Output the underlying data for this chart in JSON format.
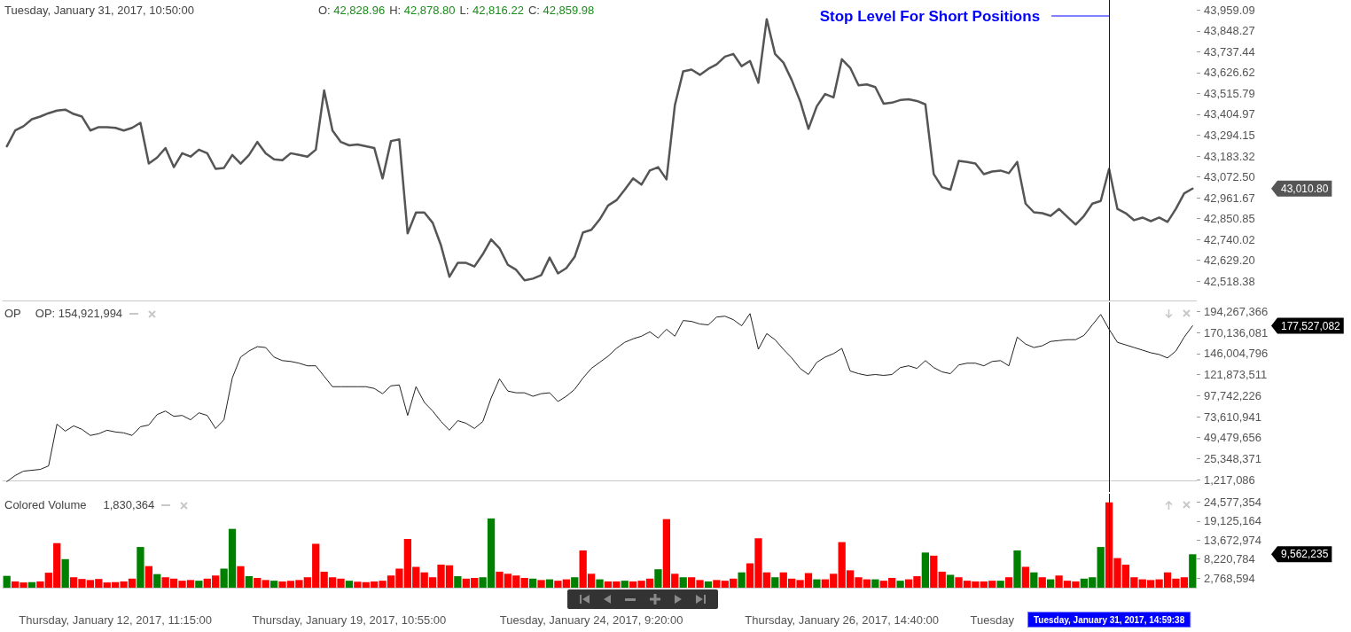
{
  "chart_data": [
    {
      "type": "line",
      "annotations": [
        "Tuesday, January 31, 2017, 10:50:00",
        "O: 42,828.96",
        "H: 42,878.80",
        "L: 42,816.22",
        "C: 42,859.98",
        "43,010.80"
      ],
      "categories": [
        null,
        null,
        null,
        null,
        null,
        null,
        null,
        null,
        null,
        null,
        null,
        null,
        null,
        "Thursday, January 12, 2017, 11:15:00",
        null,
        null,
        null,
        null,
        null,
        null,
        null,
        null,
        null,
        null,
        null,
        null,
        null,
        null,
        null,
        null,
        null,
        null,
        null,
        null,
        null,
        null,
        null,
        null,
        null,
        null,
        null,
        "Thursday, January 19, 2017, 10:55:00",
        null,
        null,
        null,
        null,
        null,
        null,
        null,
        null,
        null,
        null,
        null,
        null,
        null,
        null,
        null,
        null,
        null,
        null,
        null,
        null,
        null,
        null,
        null,
        null,
        null,
        null,
        null,
        null,
        "Tuesday, January 24, 2017, 9:20:00",
        null,
        null,
        null,
        null,
        null,
        null,
        null,
        null,
        null,
        null,
        null,
        null,
        null,
        null,
        null,
        null,
        null,
        null,
        null,
        null,
        null,
        null,
        null,
        null,
        null,
        null,
        null,
        null,
        null,
        "Thursday, January 26, 2017, 14:40:00",
        null,
        null,
        null,
        null,
        null,
        null,
        null,
        null,
        null,
        null,
        null,
        null,
        null,
        null,
        null,
        null,
        null,
        "Tuesday",
        null,
        null,
        null,
        null,
        null,
        null,
        null,
        null,
        null,
        null,
        null,
        null,
        null,
        "Tuesday, January 31, 2017, 14:59:38",
        null,
        null,
        null,
        null,
        null,
        null,
        null,
        null,
        null,
        null
      ],
      "series": [
        {
          "color": "#555555",
          "values": [
            43235,
            43319,
            43342,
            43379,
            43393,
            43411,
            43425,
            43430,
            43407,
            43393,
            43319,
            43337,
            43337,
            43333,
            43319,
            43333,
            43360,
            43143,
            43175,
            43226,
            43124,
            43198,
            43180,
            43217,
            43198,
            43115,
            43120,
            43189,
            43143,
            43189,
            43258,
            43198,
            43166,
            43161,
            43198,
            43189,
            43180,
            43217,
            43532,
            43319,
            43258,
            43240,
            43245,
            43235,
            43226,
            43064,
            43263,
            43272,
            42772,
            42883,
            42883,
            42828,
            42707,
            42541,
            42615,
            42615,
            42596,
            42661,
            42740,
            42693,
            42605,
            42578,
            42522,
            42531,
            42550,
            42643,
            42559,
            42587,
            42647,
            42777,
            42791,
            42846,
            42920,
            42948,
            43004,
            43064,
            43031,
            43106,
            43124,
            43059,
            43453,
            43634,
            43643,
            43615,
            43647,
            43671,
            43712,
            43726,
            43661,
            43689,
            43573,
            43911,
            43726,
            43680,
            43587,
            43476,
            43328,
            43448,
            43513,
            43495,
            43698,
            43652,
            43559,
            43564,
            43550,
            43462,
            43467,
            43481,
            43485,
            43476,
            43458,
            43087,
            43018,
            43004,
            43157,
            43152,
            43143,
            43087,
            43101,
            43106,
            43092,
            43152,
            42930,
            42884,
            42879,
            42865,
            42902,
            42860,
            42819,
            42865,
            42930,
            42944,
            43115,
            42902,
            42879,
            42842,
            42856,
            42837,
            42856,
            42833,
            42902,
            42985,
            43010
          ]
        }
      ],
      "ylim": [
        42415,
        44013
      ],
      "yticks": [
        {
          "value": 43959.09,
          "label": "43,959.09"
        },
        {
          "value": 43848.27,
          "label": "43,848.27"
        },
        {
          "value": 43737.44,
          "label": "43,737.44"
        },
        {
          "value": 43626.62,
          "label": "43,626.62"
        },
        {
          "value": 43515.79,
          "label": "43,515.79"
        },
        {
          "value": 43404.97,
          "label": "43,404.97"
        },
        {
          "value": 43294.15,
          "label": "43,294.15"
        },
        {
          "value": 43183.32,
          "label": "43,183.32"
        },
        {
          "value": 43072.5,
          "label": "43,072.50"
        },
        {
          "value": 42961.67,
          "label": "42,961.67"
        },
        {
          "value": 42850.85,
          "label": "42,850.85"
        },
        {
          "value": 42740.02,
          "label": "42,740.02"
        },
        {
          "value": 42629.2,
          "label": "42,629.20"
        },
        {
          "value": 42518.38,
          "label": "42,518.38"
        }
      ],
      "marker": "none",
      "tick_labels": "y",
      "ref_lines": [
        {
          "axis": "x",
          "value": "Tuesday, January 31, 2017, 14:59:38",
          "label": "Stop Level For Short Positions",
          "color": "#0000ff"
        }
      ]
    },
    {
      "type": "line",
      "title": "OP",
      "annotations": [
        "OP: 154,921,994",
        "177,527,082"
      ],
      "categories": [
        null,
        null,
        null,
        null,
        null,
        null,
        null,
        null,
        null,
        null,
        null,
        null,
        null,
        "Thursday, January 12, 2017, 11:15:00",
        null,
        null,
        null,
        null,
        null,
        null,
        null,
        null,
        null,
        null,
        null,
        null,
        null,
        null,
        null,
        null,
        null,
        null,
        null,
        null,
        null,
        null,
        null,
        null,
        null,
        null,
        null,
        "Thursday, January 19, 2017, 10:55:00",
        null,
        null,
        null,
        null,
        null,
        null,
        null,
        null,
        null,
        null,
        null,
        null,
        null,
        null,
        null,
        null,
        null,
        null,
        null,
        null,
        null,
        null,
        null,
        null,
        null,
        null,
        null,
        null,
        "Tuesday, January 24, 2017, 9:20:00",
        null,
        null,
        null,
        null,
        null,
        null,
        null,
        null,
        null,
        null,
        null,
        null,
        null,
        null,
        null,
        null,
        null,
        null,
        null,
        null,
        null,
        null,
        null,
        null,
        null,
        null,
        null,
        null,
        null,
        "Thursday, January 26, 2017, 14:40:00",
        null,
        null,
        null,
        null,
        null,
        null,
        null,
        null,
        null,
        null,
        null,
        null,
        null,
        null,
        null,
        null,
        null,
        "Tuesday",
        null,
        null,
        null,
        null,
        null,
        null,
        null,
        null,
        null,
        null,
        null,
        null,
        null,
        "Tuesday, January 31, 2017, 14:59:38",
        null,
        null,
        null,
        null,
        null,
        null,
        null,
        null,
        null,
        null
      ],
      "series": [
        {
          "color": "#222222",
          "values": [
            -1000000,
            6000000,
            11000000,
            12000000,
            13000000,
            17000000,
            65000000,
            57000000,
            63000000,
            59000000,
            52000000,
            54000000,
            58000000,
            56000000,
            55000000,
            52000000,
            62000000,
            64000000,
            76000000,
            80000000,
            74000000,
            75000000,
            70000000,
            78000000,
            75000000,
            60000000,
            70000000,
            118000000,
            142000000,
            149000000,
            154000000,
            153000000,
            142000000,
            138000000,
            137000000,
            135000000,
            132000000,
            132000000,
            120000000,
            108000000,
            108000000,
            108000000,
            108000000,
            108000000,
            106000000,
            100000000,
            109000000,
            110000000,
            75000000,
            108000000,
            90000000,
            80000000,
            68000000,
            58000000,
            69000000,
            66000000,
            60000000,
            68000000,
            95000000,
            117000000,
            103000000,
            101000000,
            101000000,
            97000000,
            100000000,
            101000000,
            91000000,
            97000000,
            105000000,
            118000000,
            129000000,
            136000000,
            143000000,
            152000000,
            159000000,
            163000000,
            166000000,
            171000000,
            164000000,
            174000000,
            166000000,
            184000000,
            183000000,
            180000000,
            179000000,
            188000000,
            189000000,
            185000000,
            178000000,
            192000000,
            151000000,
            169000000,
            162000000,
            151000000,
            141000000,
            129000000,
            122000000,
            136000000,
            142000000,
            146000000,
            152000000,
            126000000,
            123000000,
            121000000,
            122000000,
            121000000,
            122000000,
            130000000,
            132000000,
            129000000,
            138000000,
            130000000,
            125000000,
            123000000,
            133000000,
            135000000,
            135000000,
            132000000,
            137000000,
            138000000,
            132000000,
            165000000,
            157000000,
            153000000,
            155000000,
            160000000,
            161000000,
            162000000,
            162000000,
            167000000,
            179000000,
            191000000,
            174000000,
            159000000,
            156000000,
            153000000,
            150000000,
            147000000,
            145000000,
            141000000,
            149000000,
            165000000,
            178000000
          ]
        }
      ],
      "ylim": [
        -12900000,
        205000000
      ],
      "yticks": [
        {
          "value": 194267366,
          "label": "194,267,366"
        },
        {
          "value": 170136081,
          "label": "170,136,081"
        },
        {
          "value": 146004796,
          "label": "146,004,796"
        },
        {
          "value": 121873511,
          "label": "121,873,511"
        },
        {
          "value": 97742226,
          "label": "97,742,226"
        },
        {
          "value": 73610941,
          "label": "73,610,941"
        },
        {
          "value": 49479656,
          "label": "49,479,656"
        },
        {
          "value": 25348371,
          "label": "25,348,371"
        },
        {
          "value": 1217086,
          "label": "1,217,086"
        }
      ],
      "marker": "none",
      "tick_labels": "y",
      "ref_lines": [
        {
          "axis": "x",
          "value": "Tuesday, January 31, 2017, 14:59:38",
          "color": "#0000ff"
        }
      ]
    },
    {
      "type": "bar",
      "title": "Colored Volume",
      "annotations": [
        "1,830,364",
        "9,562,235"
      ],
      "categories": [
        null,
        null,
        null,
        null,
        null,
        null,
        null,
        null,
        null,
        null,
        null,
        null,
        null,
        "Thursday, January 12, 2017, 11:15:00",
        null,
        null,
        null,
        null,
        null,
        null,
        null,
        null,
        null,
        null,
        null,
        null,
        null,
        null,
        null,
        null,
        null,
        null,
        null,
        null,
        null,
        null,
        null,
        null,
        null,
        null,
        null,
        "Thursday, January 19, 2017, 10:55:00",
        null,
        null,
        null,
        null,
        null,
        null,
        null,
        null,
        null,
        null,
        null,
        null,
        null,
        null,
        null,
        null,
        null,
        null,
        null,
        null,
        null,
        null,
        null,
        null,
        null,
        null,
        null,
        null,
        "Tuesday, January 24, 2017, 9:20:00",
        null,
        null,
        null,
        null,
        null,
        null,
        null,
        null,
        null,
        null,
        null,
        null,
        null,
        null,
        null,
        null,
        null,
        null,
        null,
        null,
        null,
        null,
        null,
        null,
        null,
        null,
        null,
        null,
        null,
        "Thursday, January 26, 2017, 14:40:00",
        null,
        null,
        null,
        null,
        null,
        null,
        null,
        null,
        null,
        null,
        null,
        null,
        null,
        null,
        null,
        null,
        null,
        "Tuesday",
        null,
        null,
        null,
        null,
        null,
        null,
        null,
        null,
        null,
        null,
        null,
        null,
        null,
        "Tuesday, January 31, 2017, 14:59:38",
        null,
        null,
        null,
        null,
        null,
        null,
        null,
        null,
        null,
        null
      ],
      "values": [
        3400000,
        1800000,
        1500000,
        1600000,
        1800000,
        4300000,
        12800000,
        8200000,
        3000000,
        2500000,
        2200000,
        2500000,
        1500000,
        1600000,
        1800000,
        2600000,
        11700000,
        6200000,
        3900000,
        3000000,
        2600000,
        2000000,
        2200000,
        2000000,
        2600000,
        3500000,
        5500000,
        16900000,
        6200000,
        3300000,
        2800000,
        2200000,
        2000000,
        1800000,
        2000000,
        2200000,
        3000000,
        12600000,
        4600000,
        3000000,
        2600000,
        2000000,
        1700000,
        1600000,
        1800000,
        2000000,
        3500000,
        5500000,
        14000000,
        6000000,
        4400000,
        3000000,
        6600000,
        6400000,
        3300000,
        2600000,
        2800000,
        3000000,
        19900000,
        4600000,
        4000000,
        3500000,
        2800000,
        2600000,
        2200000,
        2400000,
        2000000,
        2400000,
        3000000,
        10700000,
        4000000,
        2400000,
        1800000,
        1800000,
        2000000,
        1800000,
        2000000,
        2600000,
        5300000,
        19700000,
        4000000,
        3000000,
        3000000,
        2200000,
        1800000,
        2200000,
        2000000,
        2600000,
        4400000,
        7000000,
        14200000,
        4400000,
        3000000,
        4400000,
        2600000,
        2200000,
        4200000,
        2400000,
        2400000,
        4000000,
        13100000,
        5000000,
        3000000,
        2400000,
        2400000,
        2000000,
        2800000,
        2000000,
        2400000,
        3300000,
        10100000,
        9200000,
        4600000,
        3700000,
        3000000,
        2000000,
        1800000,
        1800000,
        2000000,
        2000000,
        3000000,
        10700000,
        6000000,
        4400000,
        3000000,
        2400000,
        3500000,
        2000000,
        1800000,
        2600000,
        3000000,
        11700000,
        24500000,
        8500000,
        6600000,
        3000000,
        2400000,
        2200000,
        2400000,
        4400000,
        2600000,
        3000000,
        9600000
      ],
      "colors": [
        "#008000",
        "#ff0000",
        "#ff0000",
        "#008000",
        "#ff0000",
        "#ff0000",
        "#ff0000",
        "#008000",
        "#ff0000",
        "#ff0000",
        "#ff0000",
        "#ff0000",
        "#ff0000",
        "#ff0000",
        "#ff0000",
        "#ff0000",
        "#008000",
        "#ff0000",
        "#008000",
        "#ff0000",
        "#ff0000",
        "#ff0000",
        "#ff0000",
        "#008000",
        "#ff0000",
        "#ff0000",
        "#008000",
        "#008000",
        "#ff0000",
        "#008000",
        "#ff0000",
        "#ff0000",
        "#008000",
        "#ff0000",
        "#ff0000",
        "#ff0000",
        "#ff0000",
        "#ff0000",
        "#ff0000",
        "#ff0000",
        "#ff0000",
        "#008000",
        "#ff0000",
        "#ff0000",
        "#ff0000",
        "#ff0000",
        "#ff0000",
        "#ff0000",
        "#ff0000",
        "#ff0000",
        "#ff0000",
        "#ff0000",
        "#ff0000",
        "#ff0000",
        "#008000",
        "#ff0000",
        "#ff0000",
        "#008000",
        "#008000",
        "#ff0000",
        "#ff0000",
        "#ff0000",
        "#ff0000",
        "#008000",
        "#ff0000",
        "#008000",
        "#ff0000",
        "#ff0000",
        "#008000",
        "#ff0000",
        "#ff0000",
        "#008000",
        "#ff0000",
        "#ff0000",
        "#008000",
        "#ff0000",
        "#ff0000",
        "#ff0000",
        "#008000",
        "#ff0000",
        "#ff0000",
        "#008000",
        "#ff0000",
        "#ff0000",
        "#008000",
        "#ff0000",
        "#ff0000",
        "#ff0000",
        "#008000",
        "#ff0000",
        "#ff0000",
        "#ff0000",
        "#008000",
        "#ff0000",
        "#ff0000",
        "#ff0000",
        "#ff0000",
        "#008000",
        "#ff0000",
        "#ff0000",
        "#ff0000",
        "#ff0000",
        "#ff0000",
        "#ff0000",
        "#008000",
        "#ff0000",
        "#ff0000",
        "#008000",
        "#ff0000",
        "#ff0000",
        "#008000",
        "#ff0000",
        "#ff0000",
        "#008000",
        "#ff0000",
        "#ff0000",
        "#ff0000",
        "#ff0000",
        "#ff0000",
        "#008000",
        "#ff0000",
        "#008000",
        "#ff0000",
        "#008000",
        "#ff0000",
        "#008000",
        "#ff0000",
        "#ff0000",
        "#ff0000",
        "#008000",
        "#008000",
        "#008000",
        "#ff0000",
        "#ff0000",
        "#ff0000",
        "#ff0000",
        "#ff0000",
        "#ff0000",
        "#ff0000",
        "#ff0000",
        "#ff0000",
        "#ff0000",
        "#008000"
      ],
      "ylim": [
        0,
        27000000
      ],
      "yticks": [
        {
          "value": 24577354,
          "label": "24,577,354"
        },
        {
          "value": 19125164,
          "label": "19,125,164"
        },
        {
          "value": 13672974,
          "label": "13,672,974"
        },
        {
          "value": 8220784,
          "label": "8,220,784"
        },
        {
          "value": 2768594,
          "label": "2,768,594"
        }
      ],
      "ref_lines": [
        {
          "axis": "x",
          "value": "Tuesday, January 31, 2017, 14:59:38",
          "color": "#0000ff"
        }
      ]
    }
  ]
}
